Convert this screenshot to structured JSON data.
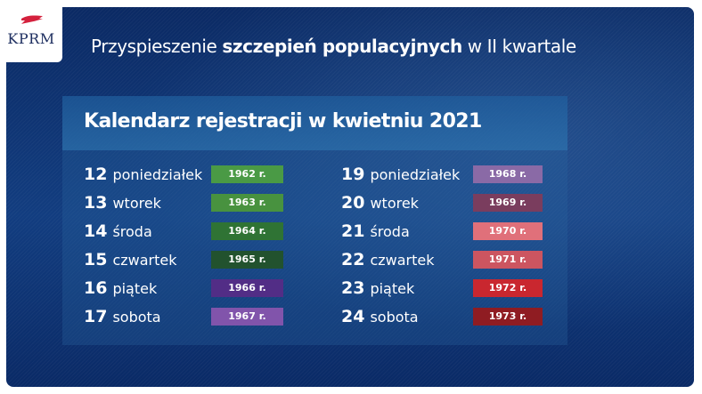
{
  "logo": {
    "text": "KPRM",
    "flag_color": "#d4213d"
  },
  "header": {
    "title_prefix": "Przyspieszenie ",
    "title_bold": "szczepień populacyjnych",
    "title_suffix": " w II kwartale"
  },
  "card": {
    "title": "Kalendarz rejestracji w kwietniu 2021",
    "left_column": [
      {
        "day": "12",
        "weekday": "poniedziałek",
        "year": "1962 r.",
        "color": "#4a9a45"
      },
      {
        "day": "13",
        "weekday": "wtorek",
        "year": "1963 r.",
        "color": "#48923f"
      },
      {
        "day": "14",
        "weekday": "środa",
        "year": "1964 r.",
        "color": "#2f7334"
      },
      {
        "day": "15",
        "weekday": "czwartek",
        "year": "1965 r.",
        "color": "#22522e"
      },
      {
        "day": "16",
        "weekday": "piątek",
        "year": "1966 r.",
        "color": "#522d86"
      },
      {
        "day": "17",
        "weekday": "sobota",
        "year": "1967 r.",
        "color": "#8154ab"
      }
    ],
    "right_column": [
      {
        "day": "19",
        "weekday": "poniedziałek",
        "year": "1968 r.",
        "color": "#8a6aa6"
      },
      {
        "day": "20",
        "weekday": "wtorek",
        "year": "1969 r.",
        "color": "#7a3d5e"
      },
      {
        "day": "21",
        "weekday": "środa",
        "year": "1970 r.",
        "color": "#e0707a"
      },
      {
        "day": "22",
        "weekday": "czwartek",
        "year": "1971 r.",
        "color": "#cc5560"
      },
      {
        "day": "23",
        "weekday": "piątek",
        "year": "1972 r.",
        "color": "#c9272f"
      },
      {
        "day": "24",
        "weekday": "sobota",
        "year": "1973 r.",
        "color": "#8f1c22"
      }
    ]
  }
}
